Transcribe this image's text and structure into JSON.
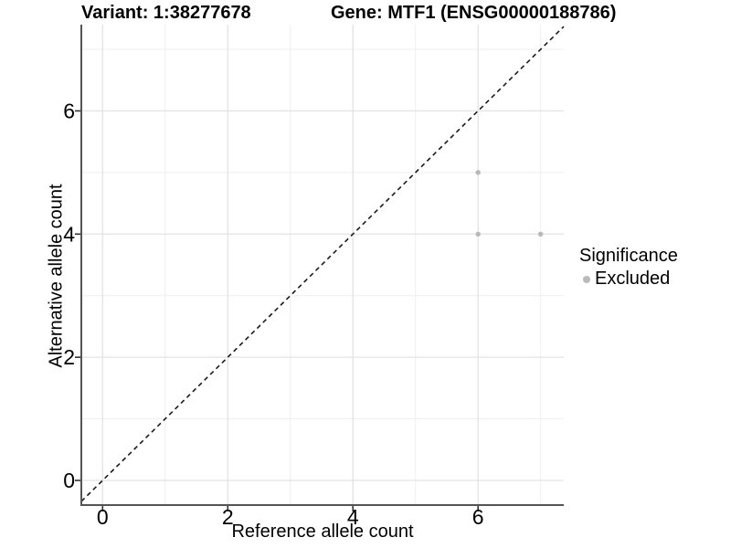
{
  "chart_data": {
    "type": "scatter",
    "title_left": "Variant: 1:38277678",
    "title_right": "Gene: MTF1 (ENSG00000188786)",
    "xlabel": "Reference allele count",
    "ylabel": "Alternative allele count",
    "xlim": [
      -0.34,
      7.37
    ],
    "ylim": [
      -0.4,
      7.4
    ],
    "x_ticks": [
      0,
      2,
      4,
      6
    ],
    "y_ticks": [
      0,
      2,
      4,
      6
    ],
    "x_minor_grid": [
      1,
      3,
      5,
      7
    ],
    "y_minor_grid": [
      1,
      3,
      5,
      7
    ],
    "grid": "on",
    "identity_line": {
      "slope": 1,
      "intercept": 0,
      "style": "dashed"
    },
    "series": [
      {
        "name": "Excluded",
        "color": "#b9b9b9",
        "points": [
          {
            "x": 6,
            "y": 5
          },
          {
            "x": 6,
            "y": 4
          },
          {
            "x": 7,
            "y": 4
          }
        ]
      }
    ],
    "legend": {
      "title": "Significance",
      "position": "right",
      "entries": [
        {
          "label": "Excluded",
          "color": "#b9b9b9",
          "marker": "dot-icon"
        }
      ]
    },
    "colors": {
      "background": "#ffffff",
      "axis_line": "#545454",
      "tick_mark": "#333333",
      "grid_major": "#e3e3e3",
      "grid_minor": "#f0f0f0",
      "text": "#000000",
      "identity_line": "#1a1a1a"
    }
  }
}
